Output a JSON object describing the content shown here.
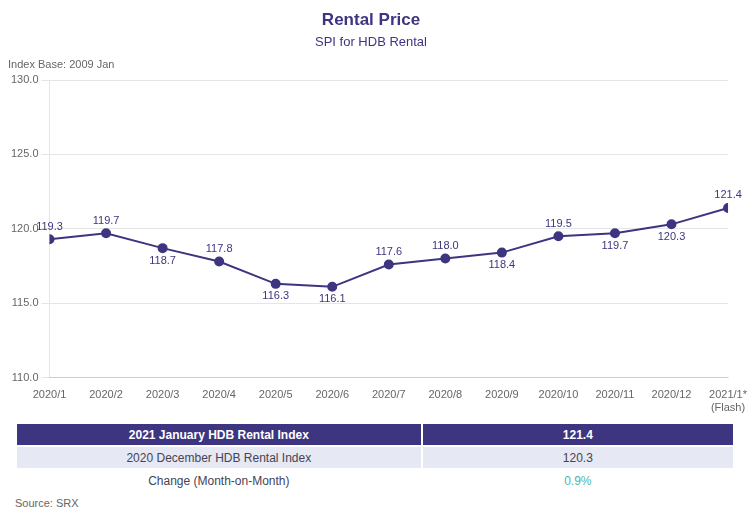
{
  "chart_data": {
    "type": "line",
    "title": "Rental Price",
    "subtitle": "SPI for HDB Rental",
    "annotations": [
      "Index Base: 2009 Jan"
    ],
    "categories": [
      "2020/1",
      "2020/2",
      "2020/3",
      "2020/4",
      "2020/5",
      "2020/6",
      "2020/7",
      "2020/8",
      "2020/9",
      "2020/10",
      "2020/11",
      "2020/12",
      "2021/1*\n(Flash)"
    ],
    "values": [
      119.3,
      119.7,
      118.7,
      117.8,
      116.3,
      116.1,
      117.6,
      118.0,
      118.4,
      119.5,
      119.7,
      120.3,
      121.4
    ],
    "value_labels": [
      "119.3",
      "119.7",
      "118.7",
      "117.8",
      "116.3",
      "116.1",
      "117.6",
      "118.0",
      "118.4",
      "119.5",
      "119.7",
      "120.3",
      "121.4"
    ],
    "data_labels": true,
    "color": "#3d3580",
    "marker": "circle",
    "ylim": [
      110,
      130
    ],
    "yticks": [
      {
        "value": 110,
        "label": "110.0"
      },
      {
        "value": 115,
        "label": "115.0"
      },
      {
        "value": 120,
        "label": "120.0"
      },
      {
        "value": 125,
        "label": "125.0"
      },
      {
        "value": 130,
        "label": "130.0"
      }
    ],
    "grid": true,
    "table": [
      {
        "label": "2021 January HDB Rental Index",
        "value": "121.4"
      },
      {
        "label": "2020 December HDB Rental Index",
        "value": "120.3"
      },
      {
        "label": "Change (Month-on-Month)",
        "value": "0.9%",
        "color": "#4db6ac"
      }
    ],
    "source": "Source: SRX"
  }
}
